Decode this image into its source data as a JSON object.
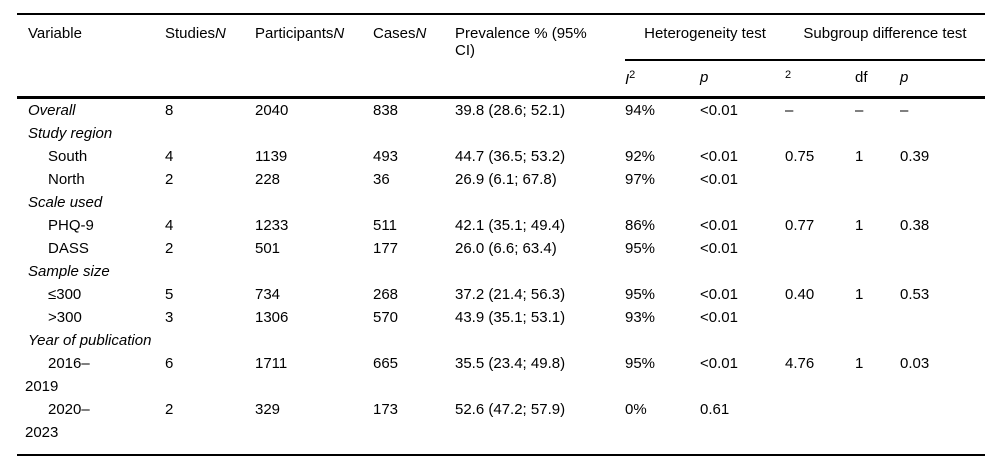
{
  "colors": {
    "text": "#000000",
    "rule": "#000000",
    "background": "#ffffff"
  },
  "table": {
    "header": {
      "variable": "Variable",
      "studies_text": "Studies",
      "studies_n": "N",
      "participants_text": "Participants",
      "participants_n": "N",
      "cases_text": "Cases",
      "cases_n": "N",
      "prevalence": "Prevalence % (95% CI)",
      "heterogeneity_group": "Heterogeneity test",
      "subgroup_group": "Subgroup difference test",
      "i2_base": "I",
      "i2_sup": "2",
      "het_p": "p",
      "chi2_sup": "2",
      "df": "df",
      "sub_p": "p"
    },
    "rows": [
      {
        "label": "Overall",
        "style": "toplevel",
        "values": [
          "8",
          "2040",
          "838",
          "39.8 (28.6; 52.1)",
          "94%",
          "<0.01",
          "–",
          "–",
          "–"
        ]
      },
      {
        "label": "Study region",
        "style": "section",
        "values": []
      },
      {
        "label": "South",
        "style": "sub",
        "values": [
          "4",
          "1139",
          "493",
          "44.7 (36.5; 53.2)",
          "92%",
          "<0.01",
          "0.75",
          "1",
          "0.39"
        ]
      },
      {
        "label": "North",
        "style": "sub",
        "values": [
          "2",
          "228",
          "36",
          "26.9 (6.1; 67.8)",
          "97%",
          "<0.01",
          "",
          "",
          ""
        ]
      },
      {
        "label": "Scale used",
        "style": "section",
        "values": []
      },
      {
        "label": "PHQ-9",
        "style": "sub",
        "values": [
          "4",
          "1233",
          "511",
          "42.1 (35.1; 49.4)",
          "86%",
          "<0.01",
          "0.77",
          "1",
          "0.38"
        ]
      },
      {
        "label": "DASS",
        "style": "sub",
        "values": [
          "2",
          "501",
          "177",
          "26.0 (6.6; 63.4)",
          "95%",
          "<0.01",
          "",
          "",
          ""
        ]
      },
      {
        "label": "Sample size",
        "style": "section",
        "values": []
      },
      {
        "label": "≤300",
        "style": "sub",
        "values": [
          "5",
          "734",
          "268",
          "37.2 (21.4; 56.3)",
          "95%",
          "<0.01",
          "0.40",
          "1",
          "0.53"
        ]
      },
      {
        "label": ">300",
        "style": "sub",
        "values": [
          "3",
          "1306",
          "570",
          "43.9 (35.1; 53.1)",
          "93%",
          "<0.01",
          "",
          "",
          ""
        ]
      },
      {
        "label": "Year of publication",
        "style": "section",
        "values": []
      },
      {
        "label": "2016–",
        "label2": "2019",
        "style": "sub-wrap",
        "values": [
          "6",
          "1711",
          "665",
          "35.5 (23.4; 49.8)",
          "95%",
          "<0.01",
          "4.76",
          "1",
          "0.03"
        ]
      },
      {
        "label": "2020–",
        "label2": "2023",
        "style": "sub-wrap",
        "values": [
          "2",
          "329",
          "173",
          "52.6 (47.2; 57.9)",
          "0%",
          "0.61",
          "",
          "",
          ""
        ]
      }
    ]
  }
}
